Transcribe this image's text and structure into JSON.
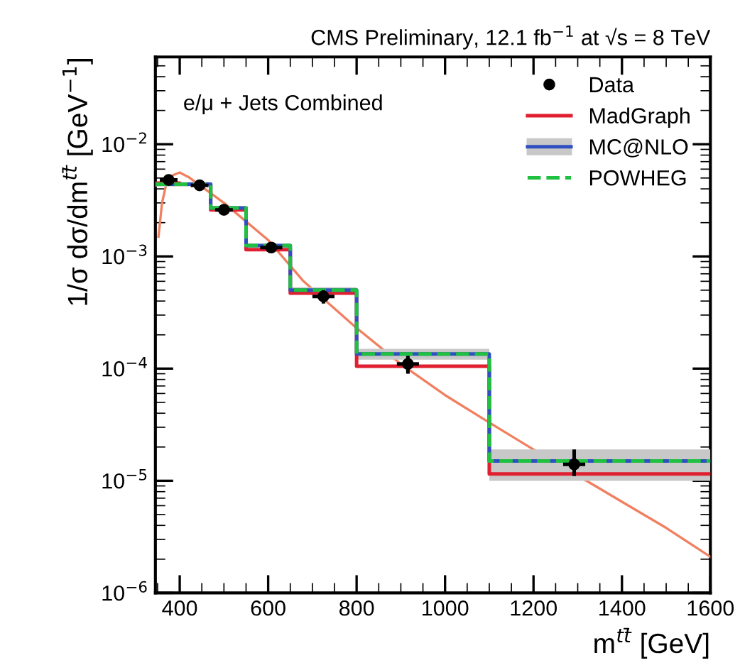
{
  "chart_data": {
    "type": "step",
    "title": "CMS Preliminary, 12.1 fb$^{−1}$ at √s = 8 TeV",
    "xlabel": "m$^{tt̄}$ [GeV]",
    "ylabel": "1/σ dσ/dm$^{tt̄}$ [GeV$^{−1}$]",
    "annotations": [
      "e/μ + Jets Combined"
    ],
    "xlim": [
      345,
      1600
    ],
    "xticks": [
      400,
      600,
      800,
      1000,
      1200,
      1400,
      1600
    ],
    "ylim": [
      1e-06,
      0.06
    ],
    "log": "y",
    "yticks": [
      {
        "value": 1e-06,
        "label": "10$^{−6}$"
      },
      {
        "value": 1e-05,
        "label": "10$^{−5}$"
      },
      {
        "value": 0.0001,
        "label": "10$^{−4}$"
      },
      {
        "value": 0.001,
        "label": "10$^{−3}$"
      },
      {
        "value": 0.01,
        "label": "10$^{−2}$"
      }
    ],
    "grid": false,
    "legend": "top right",
    "series": [
      {
        "type": "line",
        "color": "#f08060",
        "x": [
          352,
          360,
          370,
          385,
          400,
          420,
          500,
          600,
          680,
          800,
          900,
          1000,
          1100,
          1200,
          1350,
          1400,
          1500,
          1600
        ],
        "values": [
          0.0015,
          0.003,
          0.0045,
          0.0053,
          0.0056,
          0.0051,
          0.003,
          0.0014,
          0.0006,
          0.00023,
          0.00011,
          5.8e-05,
          3.3e-05,
          1.9e-05,
          8.5e-06,
          6.5e-06,
          3.8e-06,
          2.1e-06
        ]
      },
      {
        "name": "Data",
        "type": "scatter",
        "color": "#000000",
        "marker": "circle",
        "x": [
          375,
          445,
          500,
          607,
          725,
          916,
          1292
        ],
        "values": [
          0.0048,
          0.0043,
          0.0026,
          0.0012,
          0.00044,
          0.00011,
          1.4e-05
        ],
        "errors": [
          0.0003,
          0.0002,
          0.0001,
          6e-05,
          [
            0.00038,
            0.0005
          ],
          [
            9e-05,
            0.00013
          ],
          [
            1.1e-05,
            1.9e-05
          ]
        ],
        "xerrors": [
          20,
          20,
          20,
          25,
          25,
          25,
          25
        ]
      },
      {
        "name": "MadGraph",
        "color": "#e02030",
        "x": [
          345,
          400,
          470,
          550,
          650,
          800,
          1100,
          1600
        ],
        "values": [
          0.0045,
          0.0044,
          0.0026,
          0.00115,
          0.00047,
          0.000105,
          1.15e-05,
          1.15e-05
        ]
      },
      {
        "name": "MC@NLO",
        "color": "#3050c0",
        "x": [
          345,
          400,
          470,
          550,
          650,
          800,
          1100,
          1600
        ],
        "values": [
          0.0044,
          0.0044,
          0.0027,
          0.00125,
          0.0005,
          0.000135,
          1.5e-05,
          1.5e-05
        ],
        "lower": [
          0.0042,
          0.0042,
          0.0026,
          0.0012,
          0.00048,
          0.00012,
          1e-05,
          1e-05
        ],
        "upper": [
          0.0046,
          0.0046,
          0.0028,
          0.0013,
          0.00053,
          0.00015,
          1.9e-05,
          1.9e-05
        ]
      },
      {
        "name": "POWHEG",
        "color": "#20c040",
        "line_style": "dashed",
        "x": [
          345,
          400,
          470,
          550,
          650,
          800,
          1100,
          1600
        ],
        "values": [
          0.0044,
          0.0044,
          0.0027,
          0.00125,
          0.0005,
          0.000135,
          1.5e-05,
          1.5e-05
        ]
      }
    ]
  }
}
